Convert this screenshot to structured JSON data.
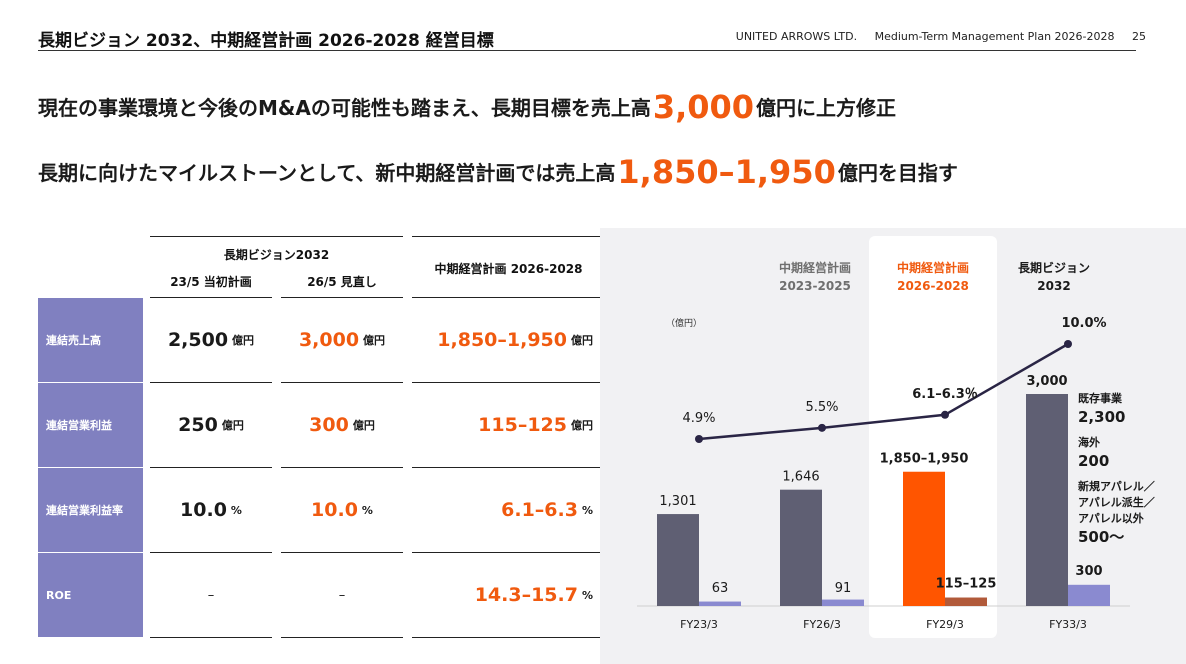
{
  "header": {
    "title": "長期ビジョン 2032、中期経営計画 2026-2028 経営目標",
    "company": "UNITED ARROWS LTD.",
    "plan": "Medium-Term Management Plan 2026-2028",
    "page": "25"
  },
  "headlines": {
    "line1_pre": "現在の事業環境と今後のM&Aの可能性も踏まえ、長期目標を売上高",
    "line1_value": "3,000",
    "line1_post": "億円に上方修正",
    "line2_pre": "長期に向けたマイルストーンとして、新中期経営計画では売上高",
    "line2_value": "1,850–1,950",
    "line2_post": "億円を目指す"
  },
  "table": {
    "group_header": "長期ビジョン2032",
    "col1_header": "23/5 当初計画",
    "col2_header": "26/5 見直し",
    "col3_header": "中期経営計画 2026-2028",
    "rows": [
      {
        "label": "連結売上高",
        "c1": "2,500",
        "c2": "3,000",
        "c3": "1,850–1,950",
        "unit": "億円"
      },
      {
        "label": "連結営業利益",
        "c1": "250",
        "c2": "300",
        "c3": "115–125",
        "unit": "億円"
      },
      {
        "label": "連結営業利益率",
        "c1": "10.0",
        "c2": "10.0",
        "c3": "6.1–6.3",
        "unit": "%"
      },
      {
        "label": "ROE",
        "c1": "–",
        "c2": "–",
        "c3": "14.3–15.7",
        "unit": "%"
      }
    ]
  },
  "chart_phases": [
    {
      "line1": "中期経営計画",
      "line2": "2023-2025"
    },
    {
      "line1": "中期経営計画",
      "line2": "2026-2028"
    },
    {
      "line1": "長期ビジョン",
      "line2": "2032"
    }
  ],
  "chart_data": {
    "type": "bar",
    "unit_label": "（億円）",
    "categories": [
      "FY23/3",
      "FY26/3",
      "FY29/3",
      "FY33/3"
    ],
    "series": [
      {
        "values": [
          1301,
          1646,
          1900,
          3000
        ],
        "labels": [
          "1,301",
          "1,646",
          "1,850–1,950",
          "3,000"
        ]
      },
      {
        "values": [
          63,
          91,
          120,
          300
        ],
        "labels": [
          "63",
          "91",
          "115–125",
          "300"
        ]
      },
      {
        "values": [
          4.9,
          5.5,
          6.2,
          10.0
        ],
        "labels": [
          "4.9%",
          "5.5%",
          "6.1–6.3％",
          "10.0%"
        ]
      }
    ],
    "breakdown": [
      {
        "label": "既存事業",
        "value": "2,300"
      },
      {
        "label": "海外",
        "value": "200"
      },
      {
        "label": "新規アパレル／\nアパレル派生／\nアパレル以外",
        "value": "500〜"
      }
    ],
    "colors": {
      "sales": "#5f5f73",
      "sales_highlight": "#ff5500",
      "profit": "#8a8ad0",
      "profit_highlight": "#b15a3a",
      "line": "#2a2545"
    }
  }
}
